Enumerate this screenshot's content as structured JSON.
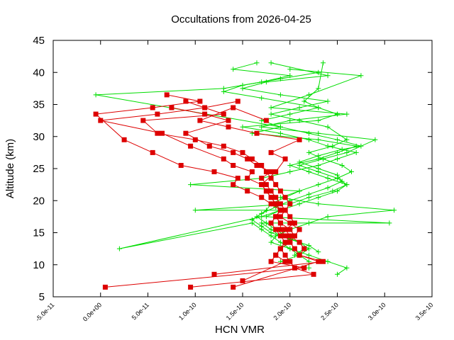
{
  "chart_data": {
    "type": "line",
    "title": "Occultations from 2026-04-25",
    "xlabel": "HCN VMR",
    "ylabel": "Altitude (km)",
    "xlim": [
      -5e-11,
      3.5e-10
    ],
    "ylim": [
      5,
      45
    ],
    "x_ticks": [
      -5e-11,
      0,
      5e-11,
      1e-10,
      1.5e-10,
      2e-10,
      2.5e-10,
      3e-10,
      3.5e-10
    ],
    "x_tick_labels": [
      "-5.0e-11",
      "0.0e+00",
      "5.0e-11",
      "1.0e-10",
      "1.5e-10",
      "2.0e-10",
      "2.5e-10",
      "3.0e-10",
      "3.5e-10"
    ],
    "y_ticks": [
      5,
      10,
      15,
      20,
      25,
      30,
      35,
      40,
      45
    ],
    "y_tick_labels": [
      "5",
      "10",
      "15",
      "20",
      "25",
      "30",
      "35",
      "40",
      "45"
    ],
    "grid": false,
    "legend": "none",
    "series": [
      {
        "color": "#00dd00",
        "marker": "plus",
        "profiles": [
          {
            "x": [
              2.5e-10,
              2.6e-10,
              2.4e-10,
              2.2e-10,
              2e-10,
              1.8e-10,
              1.85e-10,
              2e-10,
              2.2e-10,
              2.4e-10,
              3.1e-10,
              2.3e-10,
              1.9e-10,
              2.1e-10,
              9.5e-11,
              1.7e-10,
              2e-10,
              2.3e-10,
              2.5e-10,
              2.7e-10,
              2.4e-10,
              2.2e-10,
              1.9e-10,
              1.5e-10,
              2.3e-10,
              2.5e-10,
              2.3e-10,
              2.15e-10,
              2.3e-10,
              2.35e-10
            ],
            "y": [
              8.5,
              9.5,
              10.5,
              11.5,
              12.5,
              13.5,
              14.5,
              15.5,
              16.5,
              17.5,
              18.5,
              19.5,
              20.5,
              21.5,
              22.5,
              23.5,
              24.5,
              25.5,
              26.5,
              27.5,
              28.5,
              29.5,
              30.5,
              31.5,
              32.5,
              33.5,
              34.5,
              35.5,
              37.5,
              41.5
            ]
          },
          {
            "x": [
              2.2e-10,
              2.2e-10,
              2.1e-10,
              2e-10,
              1.9e-10,
              1.8e-10,
              1.7e-10,
              1.6e-10,
              2e-11,
              1.7e-10,
              1.9e-10,
              2.1e-10,
              2.3e-10,
              2.5e-10,
              2.6e-10,
              2.4e-10,
              2.2e-10,
              2e-10,
              2.3e-10,
              2.5e-10,
              2.7e-10,
              2.3e-10,
              1.6e-10,
              1.9e-10,
              -5e-12,
              1.3e-10,
              1.7e-10,
              2e-10,
              1.4e-10,
              1.65e-10
            ],
            "y": [
              9.5,
              10.5,
              11.5,
              12.5,
              13.5,
              14.5,
              15.5,
              16.5,
              12.5,
              17.5,
              18.5,
              19.5,
              20.5,
              21.5,
              22.5,
              23.5,
              24.5,
              25.5,
              26.5,
              27.5,
              28.5,
              29.5,
              30.5,
              31.5,
              36.5,
              37.5,
              38.5,
              39.5,
              40.5,
              41.5
            ]
          },
          {
            "x": [
              1.9e-10,
              2.1e-10,
              2.2e-10,
              2.1e-10,
              1.9e-10,
              1.8e-10,
              1.7e-10,
              3.05e-10,
              1.75e-10,
              1.9e-10,
              1e-10,
              2e-10,
              2.2e-10,
              2.45e-10,
              2.6e-10,
              2.5e-10,
              2.3e-10,
              2.1e-10,
              2.35e-10,
              2.6e-10,
              2.9e-10,
              2.3e-10,
              1.7e-10,
              2e-10,
              2.6e-10,
              1.8e-10,
              2.2e-10,
              2.75e-10,
              2e-10
            ],
            "y": [
              10.5,
              11.5,
              12.5,
              13.5,
              14.5,
              15.5,
              16.5,
              16.5,
              17.5,
              18.5,
              18.5,
              19.5,
              20.5,
              21.5,
              22.5,
              23.5,
              24.5,
              25.5,
              26.5,
              27.5,
              29.5,
              30.5,
              31.5,
              32.5,
              33.5,
              34.5,
              36.5,
              39.5,
              40.5
            ]
          },
          {
            "x": [
              2.05e-10,
              2.15e-10,
              2.1e-10,
              1.95e-10,
              1.85e-10,
              1.75e-10,
              1.65e-10,
              1.75e-10,
              1.8e-10,
              1.95e-10,
              2.1e-10,
              2.3e-10,
              2.5e-10,
              2.65e-10,
              2.55e-10,
              2.35e-10,
              2.2e-10,
              2.45e-10,
              2.6e-10,
              2.4e-10,
              2.1e-10,
              1.8e-10,
              2.1e-10,
              2.4e-10,
              1.9e-10,
              1.5e-10,
              1.75e-10,
              2.4e-10,
              1.8e-10
            ],
            "y": [
              11.5,
              12.5,
              13.5,
              14.5,
              15.5,
              16.5,
              17.5,
              18.5,
              19.5,
              20.5,
              21.5,
              22.5,
              23.5,
              24.5,
              25.5,
              26.5,
              27.5,
              28.5,
              29.5,
              31.5,
              32.5,
              33.5,
              34.5,
              35.5,
              36.5,
              37.5,
              38.5,
              39.5,
              41.5
            ]
          },
          {
            "x": [
              2.3e-10,
              2.2e-10,
              2e-10,
              1.8e-10,
              1.7e-10,
              1.6e-10,
              1.7e-10,
              1.85e-10,
              2e-10,
              2.2e-10,
              2.4e-10,
              2.55e-10,
              2.5e-10,
              2.3e-10,
              2.1e-10,
              2.3e-10,
              2.55e-10,
              2.75e-10,
              2.5e-10,
              2.2e-10,
              1.9e-10,
              1.7e-10,
              2e-10,
              2.3e-10,
              1.7e-10,
              1.3e-10,
              1.5e-10,
              1.9e-10,
              2.3e-10
            ],
            "y": [
              12.0,
              13.0,
              14.0,
              15.0,
              16.0,
              17.0,
              18.0,
              19.0,
              20.0,
              21.0,
              22.0,
              23.0,
              24.0,
              25.0,
              26.0,
              27.0,
              28.0,
              28.5,
              29.5,
              30.5,
              31.5,
              32.5,
              33.5,
              34.5,
              36.0,
              37.0,
              38.0,
              39.0,
              40.0
            ]
          }
        ]
      },
      {
        "color": "#dd0000",
        "marker": "square",
        "profiles": [
          {
            "x": [
              5e-12,
              2.15e-10,
              1.8e-10,
              1.85e-10,
              1.9e-10,
              1.95e-10,
              1.9e-10,
              1.85e-10,
              1.8e-10,
              1.85e-10,
              1.9e-10,
              1.85e-10,
              1.8e-10,
              1.75e-10,
              1.7e-10,
              1.55e-10,
              1.6e-10,
              1.4e-10,
              1.3e-10,
              9.5e-11,
              6.5e-11,
              0.0,
              6e-11,
              1.1e-10,
              1.45e-10
            ],
            "y": [
              6.5,
              9.5,
              10.5,
              11.5,
              12.5,
              13.5,
              14.5,
              15.5,
              16.5,
              17.5,
              18.5,
              19.5,
              20.5,
              21.5,
              22.5,
              23.5,
              24.5,
              25.5,
              26.5,
              28.5,
              30.5,
              32.5,
              33.5,
              34.5,
              35.5
            ]
          },
          {
            "x": [
              9.5e-11,
              2.25e-10,
              2.05e-10,
              2e-10,
              1.95e-10,
              1.9e-10,
              2e-10,
              1.95e-10,
              1.9e-10,
              1.9e-10,
              1.85e-10,
              1.9e-10,
              1.8e-10,
              1.7e-10,
              1.55e-10,
              1.4e-10,
              1.45e-10,
              1.2e-10,
              8.5e-11,
              5.5e-11,
              2.5e-11,
              -5e-12,
              5.5e-11,
              1.05e-10,
              7e-11
            ],
            "y": [
              6.5,
              8.5,
              9.5,
              10.5,
              11.5,
              12.5,
              13.5,
              14.5,
              15.5,
              16.5,
              17.5,
              18.5,
              19.5,
              20.5,
              21.5,
              22.5,
              23.5,
              24.5,
              25.5,
              27.5,
              29.5,
              33.5,
              34.5,
              35.5,
              36.5
            ]
          },
          {
            "x": [
              1.4e-10,
              2.3e-10,
              2.1e-10,
              2.05e-10,
              2e-10,
              2.05e-10,
              2.1e-10,
              2e-10,
              1.9e-10,
              1.95e-10,
              2e-10,
              1.95e-10,
              1.9e-10,
              1.85e-10,
              1.8e-10,
              1.75e-10,
              1.7e-10,
              1.6e-10,
              1.5e-10,
              1.3e-10,
              1e-10,
              6e-11,
              4.5e-11,
              1.3e-10,
              9e-11
            ],
            "y": [
              6.5,
              10.5,
              11.5,
              12.5,
              13.5,
              14.5,
              15.5,
              16.5,
              17.5,
              18.5,
              19.5,
              20.5,
              21.5,
              22.5,
              23.5,
              24.5,
              25.5,
              26.5,
              27.5,
              28.5,
              29.5,
              30.5,
              32.5,
              33.5,
              35.5
            ]
          },
          {
            "x": [
              1.2e-10,
              2.35e-10,
              2.1e-10,
              2.15e-10,
              2.1e-10,
              2e-10,
              1.95e-10,
              2.05e-10,
              2e-10,
              1.95e-10,
              1.9e-10,
              1.85e-10,
              1.8e-10,
              1.75e-10,
              1.7e-10,
              1.8e-10,
              1.65e-10,
              1.55e-10,
              1.4e-10,
              1.15e-10,
              9e-11,
              1.35e-10,
              1.1e-10,
              7.5e-11
            ],
            "y": [
              8.5,
              10.5,
              11.5,
              12.5,
              13.5,
              14.5,
              15.5,
              16.5,
              17.5,
              18.5,
              19.5,
              20.5,
              21.5,
              22.5,
              23.5,
              24.5,
              25.5,
              26.5,
              27.5,
              28.5,
              30.5,
              32.5,
              33.5,
              34.5
            ]
          },
          {
            "x": [
              1.5e-10,
              1.95e-10,
              1.85e-10,
              1.9e-10,
              1.95e-10,
              2.05e-10,
              2e-10,
              1.9e-10,
              1.85e-10,
              1.9e-10,
              1.85e-10,
              1.8e-10,
              1.75e-10,
              1.7e-10,
              1.85e-10,
              1.95e-10,
              1.8e-10,
              2.1e-10,
              1.65e-10,
              1.35e-10,
              1.05e-10,
              1.4e-10,
              1.75e-10
            ],
            "y": [
              7.5,
              10.5,
              11.5,
              12.5,
              13.5,
              14.5,
              15.5,
              16.5,
              17.5,
              18.5,
              19.5,
              20.5,
              21.5,
              22.5,
              24.5,
              26.5,
              27.5,
              29.5,
              30.5,
              31.5,
              32.5,
              34.5,
              32.5
            ]
          }
        ]
      }
    ]
  }
}
